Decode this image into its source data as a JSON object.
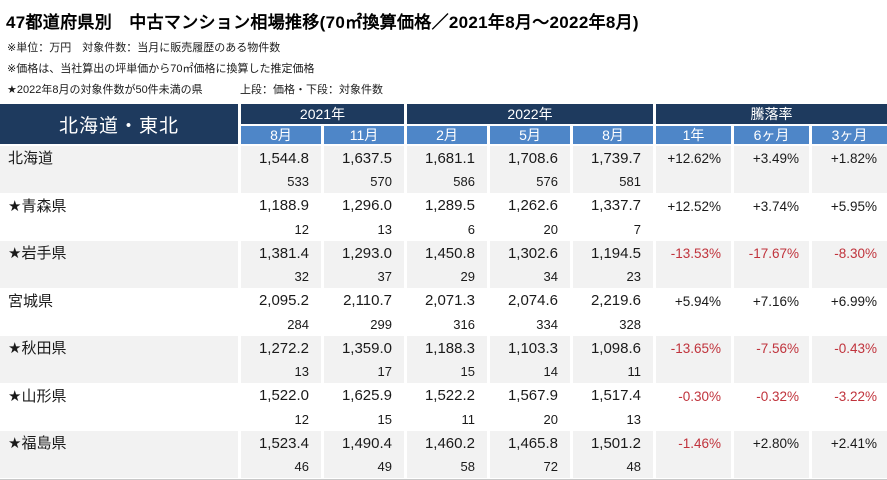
{
  "title": "47都道府県別　中古マンション相場推移(70㎡換算価格／2021年8月～2022年8月)",
  "notes": {
    "unit_note": "※単位：万円　対象件数：当月に販売履歴のある物件数",
    "price_note": "※価格は、当社算出の坪単価から70㎡価格に換算した推定価格",
    "star_note": "★2022年8月の対象件数が50件未満の県",
    "legend_note": "上段：価格・下段：対象件数"
  },
  "chart_data": {
    "type": "table",
    "title": "47都道府県別　中古マンション相場推移(70㎡換算価格／2021年8月～2022年8月)",
    "region": "北海道・東北",
    "unit": "万円",
    "column_groups": [
      {
        "label": "2021年",
        "span": 2
      },
      {
        "label": "2022年",
        "span": 3
      },
      {
        "label": "騰落率",
        "span": 3
      }
    ],
    "columns": [
      "8月",
      "11月",
      "2月",
      "5月",
      "8月",
      "1年",
      "6ヶ月",
      "3ヶ月"
    ],
    "row_structure": "上段：価格(70㎡換算・万円)、下段：対象件数。騰落率は1年・6ヶ月・3ヶ月。",
    "rows": [
      {
        "name": "北海道",
        "prices": [
          1544.8,
          1637.5,
          1681.1,
          1708.6,
          1739.7
        ],
        "counts": [
          533,
          570,
          586,
          576,
          581
        ],
        "rates": [
          "+12.62%",
          "+3.49%",
          "+1.82%"
        ]
      },
      {
        "name": "★青森県",
        "prices": [
          1188.9,
          1296.0,
          1289.5,
          1262.6,
          1337.7
        ],
        "counts": [
          12,
          13,
          6,
          20,
          7
        ],
        "rates": [
          "+12.52%",
          "+3.74%",
          "+5.95%"
        ]
      },
      {
        "name": "★岩手県",
        "prices": [
          1381.4,
          1293.0,
          1450.8,
          1302.6,
          1194.5
        ],
        "counts": [
          32,
          37,
          29,
          34,
          23
        ],
        "rates": [
          "-13.53%",
          "-17.67%",
          "-8.30%"
        ]
      },
      {
        "name": "宮城県",
        "prices": [
          2095.2,
          2110.7,
          2071.3,
          2074.6,
          2219.6
        ],
        "counts": [
          284,
          299,
          316,
          334,
          328
        ],
        "rates": [
          "+5.94%",
          "+7.16%",
          "+6.99%"
        ]
      },
      {
        "name": "★秋田県",
        "prices": [
          1272.2,
          1359.0,
          1188.3,
          1103.3,
          1098.6
        ],
        "counts": [
          13,
          17,
          15,
          14,
          11
        ],
        "rates": [
          "-13.65%",
          "-7.56%",
          "-0.43%"
        ]
      },
      {
        "name": "★山形県",
        "prices": [
          1522.0,
          1625.9,
          1522.2,
          1567.9,
          1517.4
        ],
        "counts": [
          12,
          15,
          11,
          20,
          13
        ],
        "rates": [
          "-0.30%",
          "-0.32%",
          "-3.22%"
        ]
      },
      {
        "name": "★福島県",
        "prices": [
          1523.4,
          1490.4,
          1460.2,
          1465.8,
          1501.2
        ],
        "counts": [
          46,
          49,
          58,
          72,
          48
        ],
        "rates": [
          "-1.46%",
          "+2.80%",
          "+2.41%"
        ]
      }
    ],
    "colors": {
      "header_dark": "#1e3a5e",
      "header_blue": "#4e86c8",
      "stripe": "#f2f2f2",
      "negative": "#c0333c",
      "text": "#1a1a1a"
    }
  }
}
